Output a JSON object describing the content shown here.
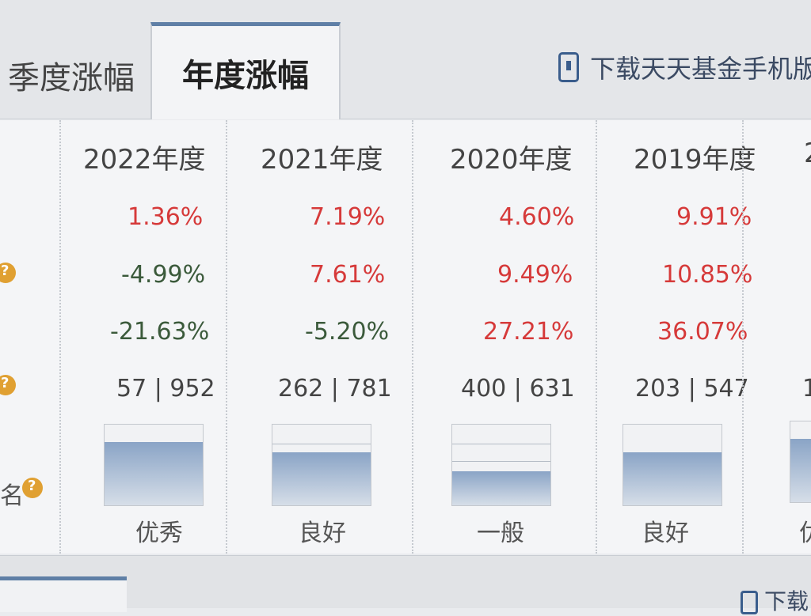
{
  "tabs": {
    "quarter": "季度涨幅",
    "annual": "年度涨幅"
  },
  "download_text": "下载天天基金手机版",
  "bottom_download_text": "下载",
  "row_label_fragment": "名",
  "columns": [
    {
      "year": "2022年度",
      "r1": "1.36%",
      "r2": "-4.99%",
      "r3": "-21.63%",
      "rank": "57 | 952",
      "rating": "优秀",
      "gauge_level": 0.78
    },
    {
      "year": "2021年度",
      "r1": "7.19%",
      "r2": "7.61%",
      "r3": "-5.20%",
      "rank": "262 | 781",
      "rating": "良好",
      "gauge_level": 0.66
    },
    {
      "year": "2020年度",
      "r1": "4.60%",
      "r2": "9.49%",
      "r3": "27.21%",
      "rank": "400 | 631",
      "rating": "一般",
      "gauge_level": 0.42
    },
    {
      "year": "2019年度",
      "r1": "9.91%",
      "r2": "10.85%",
      "r3": "36.07%",
      "rank": "203 | 547",
      "rating": "良好",
      "gauge_level": 0.66
    }
  ],
  "partial_column": {
    "year": "2",
    "rank": "1",
    "rating": "优"
  },
  "colors": {
    "positive": "#d63a3a",
    "negative": "#3b5a3b",
    "accent": "#5f7fa6"
  },
  "icons": {
    "download": "phone-download-icon",
    "help": "question-icon"
  }
}
